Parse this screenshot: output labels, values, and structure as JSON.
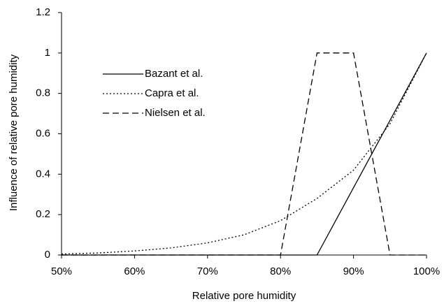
{
  "chart_data": {
    "type": "line",
    "x_label": "Relative pore humidity",
    "y_label": "Influence of relative pore humidity",
    "xlim": [
      50,
      100
    ],
    "xticks": [
      {
        "value": 50,
        "label": "50%"
      },
      {
        "value": 60,
        "label": "60%"
      },
      {
        "value": 70,
        "label": "70%"
      },
      {
        "value": 80,
        "label": "80%"
      },
      {
        "value": 90,
        "label": "90%"
      },
      {
        "value": 100,
        "label": "100%"
      }
    ],
    "ylim": [
      0,
      1.2
    ],
    "yticks": [
      0,
      0.2,
      0.4,
      0.6,
      0.8,
      1,
      1.2
    ],
    "legend": "upper left",
    "series": [
      {
        "name": "Bazant et al.",
        "color": "#000000",
        "style": "solid",
        "x": [
          50,
          85,
          100
        ],
        "values": [
          0,
          0,
          1
        ]
      },
      {
        "name": "Capra et al.",
        "color": "#000000",
        "style": "dotted",
        "x": [
          50,
          55,
          60,
          65,
          70,
          75,
          80,
          85,
          90,
          95,
          100
        ],
        "values": [
          0.005,
          0.01,
          0.02,
          0.035,
          0.06,
          0.1,
          0.17,
          0.28,
          0.42,
          0.65,
          1
        ]
      },
      {
        "name": "Nielsen et al.",
        "color": "#000000",
        "style": "dashed",
        "x": [
          50,
          80,
          85,
          90,
          95,
          100
        ],
        "values": [
          0,
          0,
          1,
          1,
          0,
          0
        ]
      }
    ]
  }
}
